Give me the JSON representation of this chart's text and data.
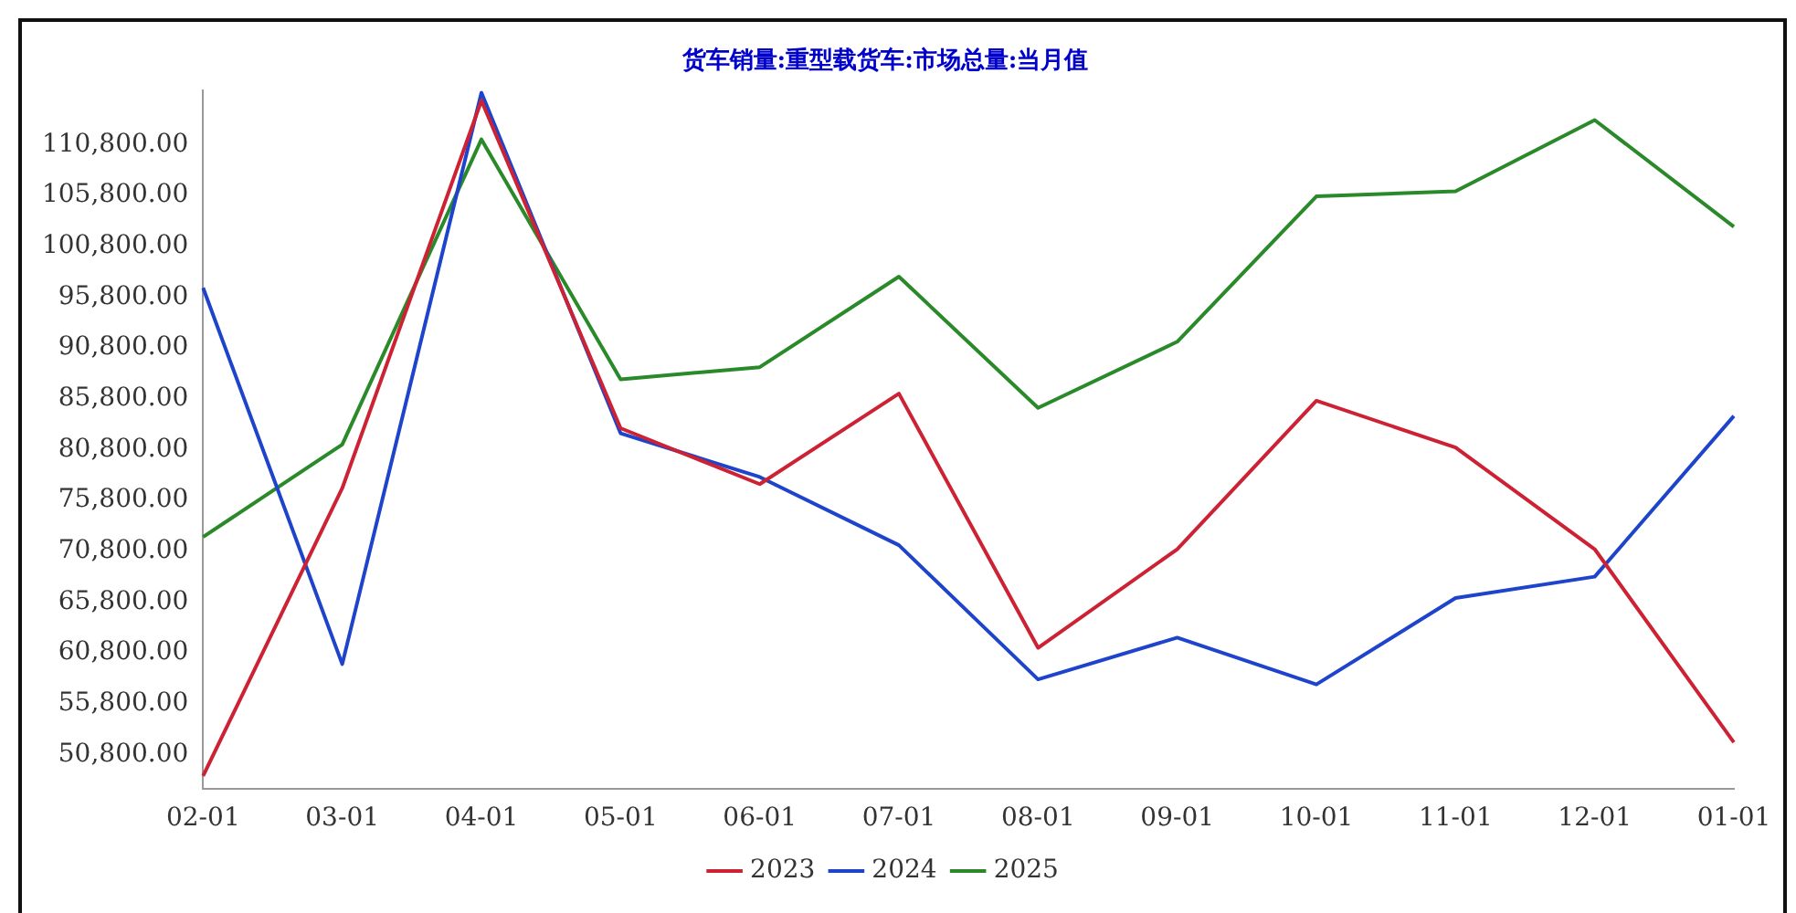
{
  "chart_data": {
    "type": "line",
    "title": "货车销量:重型载货车:市场总量:当月值",
    "categories": [
      "02-01",
      "03-01",
      "04-01",
      "05-01",
      "06-01",
      "07-01",
      "08-01",
      "09-01",
      "10-01",
      "11-01",
      "12-01",
      "01-01"
    ],
    "series": [
      {
        "name": "2023",
        "color": "#cc2233",
        "values": [
          48700,
          77000,
          115100,
          82900,
          77400,
          86300,
          61300,
          71000,
          85600,
          81000,
          71000,
          52000
        ]
      },
      {
        "name": "2024",
        "color": "#1f44cc",
        "values": [
          96700,
          59700,
          115900,
          82400,
          78100,
          71400,
          58200,
          62300,
          57700,
          66200,
          68300,
          84100
        ]
      },
      {
        "name": "2025",
        "color": "#2a8a2a",
        "values": [
          72200,
          81300,
          111300,
          87700,
          88900,
          97800,
          84900,
          91400,
          105700,
          106200,
          113200,
          102700
        ]
      }
    ],
    "ylim": [
      47400,
      116100
    ],
    "yticks": [
      {
        "value": 50800,
        "label": "50,800.00"
      },
      {
        "value": 55800,
        "label": "55,800.00"
      },
      {
        "value": 60800,
        "label": "60,800.00"
      },
      {
        "value": 65800,
        "label": "65,800.00"
      },
      {
        "value": 70800,
        "label": "70,800.00"
      },
      {
        "value": 75800,
        "label": "75,800.00"
      },
      {
        "value": 80800,
        "label": "80,800.00"
      },
      {
        "value": 85800,
        "label": "85,800.00"
      },
      {
        "value": 90800,
        "label": "90,800.00"
      },
      {
        "value": 95800,
        "label": "95,800.00"
      },
      {
        "value": 100800,
        "label": "100,800.00"
      },
      {
        "value": 105800,
        "label": "105,800.00"
      },
      {
        "value": 110800,
        "label": "110,800.00"
      }
    ],
    "grid": false,
    "legend": "bottom",
    "marker": "none",
    "line_style": "solid"
  }
}
